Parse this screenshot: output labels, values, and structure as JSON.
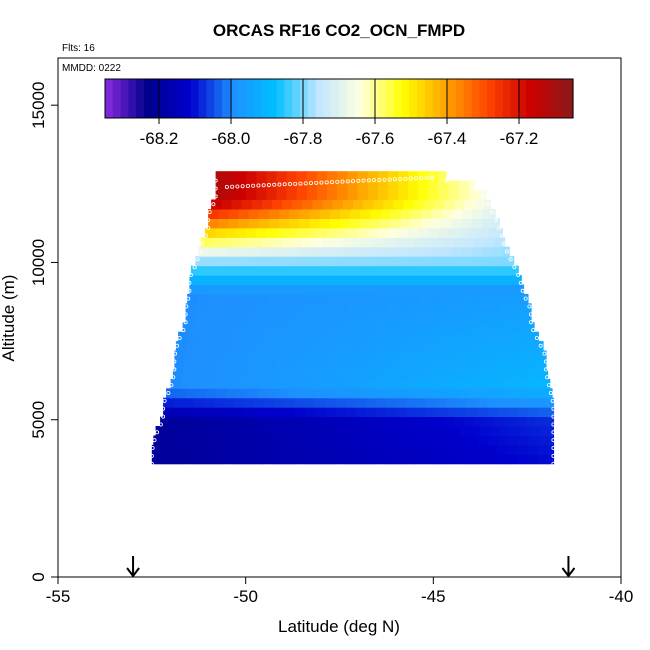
{
  "chart_data": {
    "type": "heatmap",
    "title": "ORCAS RF16 CO2_OCN_FMPD",
    "annotations": {
      "flights": "Flts: 16",
      "mmdd": "MMDD: 0222"
    },
    "xlabel": "Latitude (deg N)",
    "ylabel": "Altitude (m)",
    "xlim": [
      -55,
      -40
    ],
    "ylim": [
      0,
      16500
    ],
    "x_ticks": [
      -55,
      -50,
      -45,
      -40
    ],
    "y_ticks": [
      0,
      5000,
      10000,
      15000
    ],
    "colorbar": {
      "range": [
        -68.35,
        -67.05
      ],
      "ticks": [
        -68.2,
        -68.0,
        -67.8,
        -67.6,
        -67.4,
        -67.2
      ],
      "tick_labels": [
        "-68.2",
        "-68.0",
        "-67.8",
        "-67.6",
        "-67.4",
        "-67.2"
      ],
      "colors": [
        "#8a2be2",
        "#00008b",
        "#0000cd",
        "#1e90ff",
        "#00bfff",
        "#bfe6ff",
        "#ffffe0",
        "#ffff00",
        "#ffa500",
        "#ff4500",
        "#cc0000",
        "#8b1a1a"
      ]
    },
    "profile_envelope": {
      "altitudes_m": [
        3600,
        4000,
        4500,
        5000,
        5500,
        6000,
        6500,
        7000,
        7500,
        8000,
        8500,
        9000,
        9500,
        10000,
        10500,
        11000,
        11500,
        12000,
        12400,
        12700
      ],
      "south_edge_lat": [
        -52.5,
        -52.5,
        -52.4,
        -52.2,
        -52.2,
        -52.0,
        -51.9,
        -51.9,
        -51.8,
        -51.6,
        -51.6,
        -51.5,
        -51.5,
        -51.3,
        -51.2,
        -51.0,
        -51.0,
        -50.8,
        -50.8,
        -50.8
      ],
      "north_edge_lat": [
        -41.8,
        -41.8,
        -41.8,
        -41.8,
        -41.8,
        -41.9,
        -42.0,
        -42.0,
        -42.2,
        -42.4,
        -42.4,
        -42.6,
        -42.7,
        -42.9,
        -43.1,
        -43.2,
        -43.4,
        -43.6,
        -44.0,
        -45.0
      ]
    },
    "values_summary": {
      "lower_troposphere_below_5000m": -68.2,
      "mid_troposphere_6000_9000m": -68.0,
      "around_9500m": -67.8,
      "upper_south_above_11000m": -67.1,
      "upper_north_above_11000m": -67.7
    },
    "flight_markers_lat": [
      -53.0,
      -41.4
    ]
  }
}
